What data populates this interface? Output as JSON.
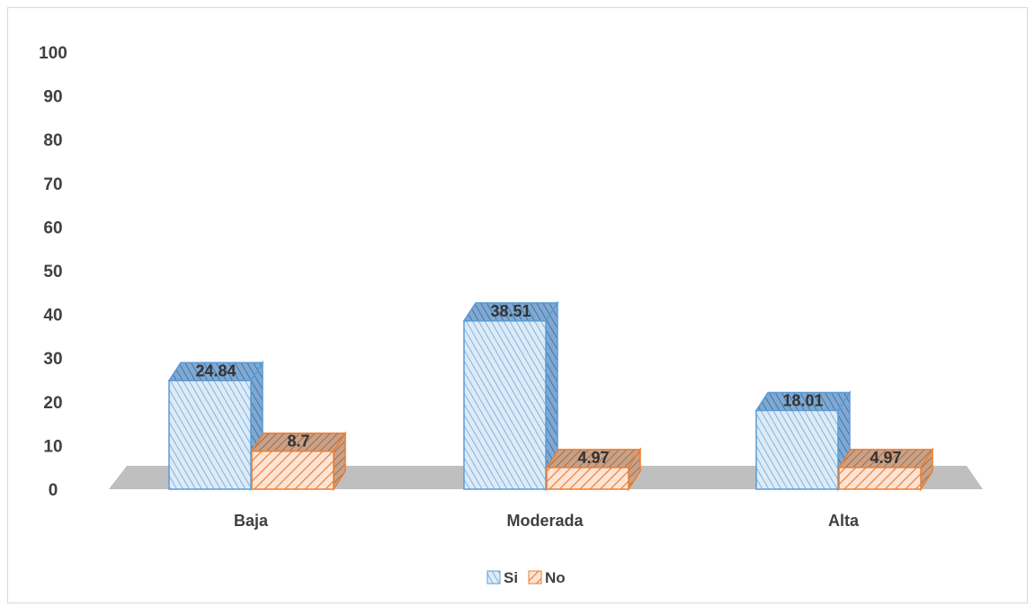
{
  "chart_data": {
    "type": "bar",
    "categories": [
      "Baja",
      "Moderada",
      "Alta"
    ],
    "series": [
      {
        "name": "Si",
        "values": [
          24.84,
          38.51,
          18.01
        ],
        "color": "#5b9bd5"
      },
      {
        "name": "No",
        "values": [
          8.7,
          4.97,
          4.97
        ],
        "color": "#ed7d31"
      }
    ],
    "data_labels": [
      [
        "24.84",
        "38.51",
        "18.01"
      ],
      [
        "8.7",
        "4.97",
        "4.97"
      ]
    ],
    "yticks": [
      "0",
      "10",
      "20",
      "30",
      "40",
      "50",
      "60",
      "70",
      "80",
      "90",
      "100"
    ],
    "ylim": [
      0,
      100
    ],
    "legend_position": "bottom",
    "grid": false,
    "style": "3d-hatched"
  }
}
